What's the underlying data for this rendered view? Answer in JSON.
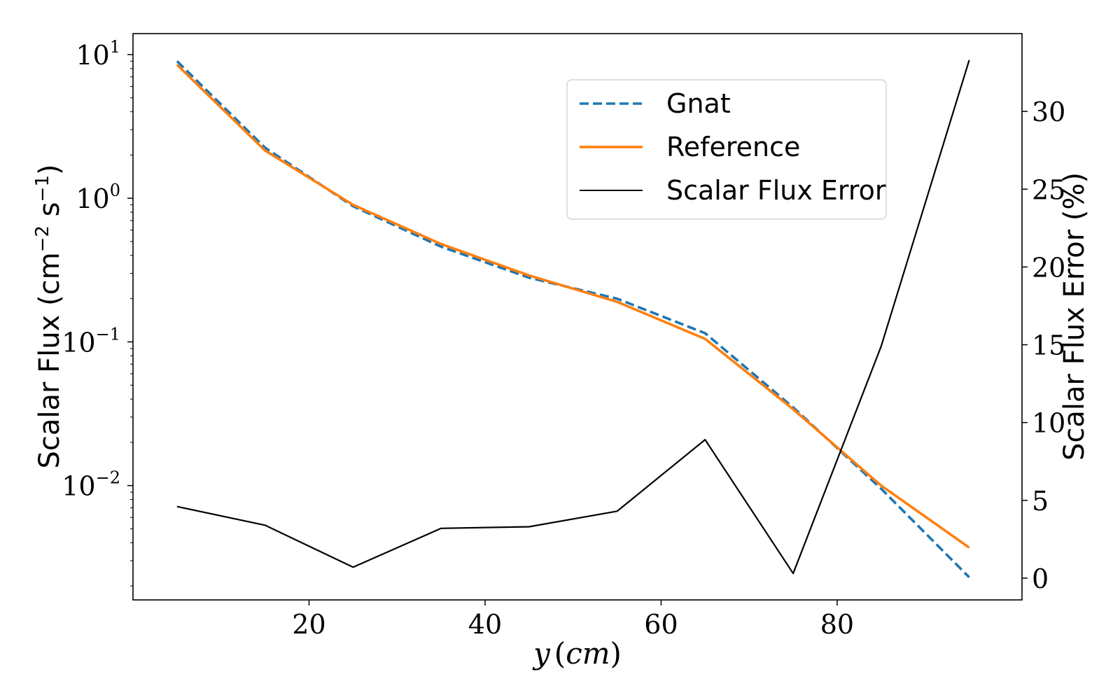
{
  "chart_data": {
    "type": "line",
    "xlabel": {
      "var": "y",
      "unit": "cm"
    },
    "ylabel": {
      "prefix": "Scalar Flux (cm",
      "exp1": "−2",
      "mid": " s",
      "exp2": "−1",
      "suffix": ")"
    },
    "y2label": "Scalar Flux Error (%)",
    "xlim": [
      0,
      101
    ],
    "ylim": [
      0.0016,
      14
    ],
    "y2lim": [
      -1.4,
      35.0
    ],
    "yscale": "log",
    "y2scale": "linear",
    "grid": false,
    "legend_position": "upper-right",
    "x_ticks": [
      20,
      40,
      60,
      80
    ],
    "y_ticks": [
      {
        "value": 0.01,
        "base": "10",
        "exp": "−2"
      },
      {
        "value": 0.1,
        "base": "10",
        "exp": "−1"
      },
      {
        "value": 1,
        "base": "10",
        "exp": "0"
      },
      {
        "value": 10,
        "base": "10",
        "exp": "1"
      }
    ],
    "y2_ticks": [
      0,
      5,
      10,
      15,
      20,
      25,
      30
    ],
    "x": [
      5,
      15,
      25,
      35,
      45,
      55,
      65,
      75,
      85,
      95
    ],
    "series": [
      {
        "name": "Gnat",
        "axis": "left",
        "color": "#1f77b4",
        "style": "dashed",
        "values": [
          9.0,
          2.25,
          0.88,
          0.46,
          0.28,
          0.2,
          0.115,
          0.035,
          0.0095,
          0.0023
        ]
      },
      {
        "name": "Reference",
        "axis": "left",
        "color": "#ff7f0e",
        "style": "solid",
        "values": [
          8.5,
          2.15,
          0.9,
          0.48,
          0.29,
          0.19,
          0.105,
          0.034,
          0.01,
          0.0037
        ]
      },
      {
        "name": "Scalar Flux Error",
        "axis": "right",
        "color": "#000000",
        "style": "solid",
        "values": [
          4.6,
          3.4,
          0.7,
          3.2,
          3.3,
          4.3,
          8.9,
          0.3,
          14.9,
          33.3
        ]
      }
    ]
  }
}
